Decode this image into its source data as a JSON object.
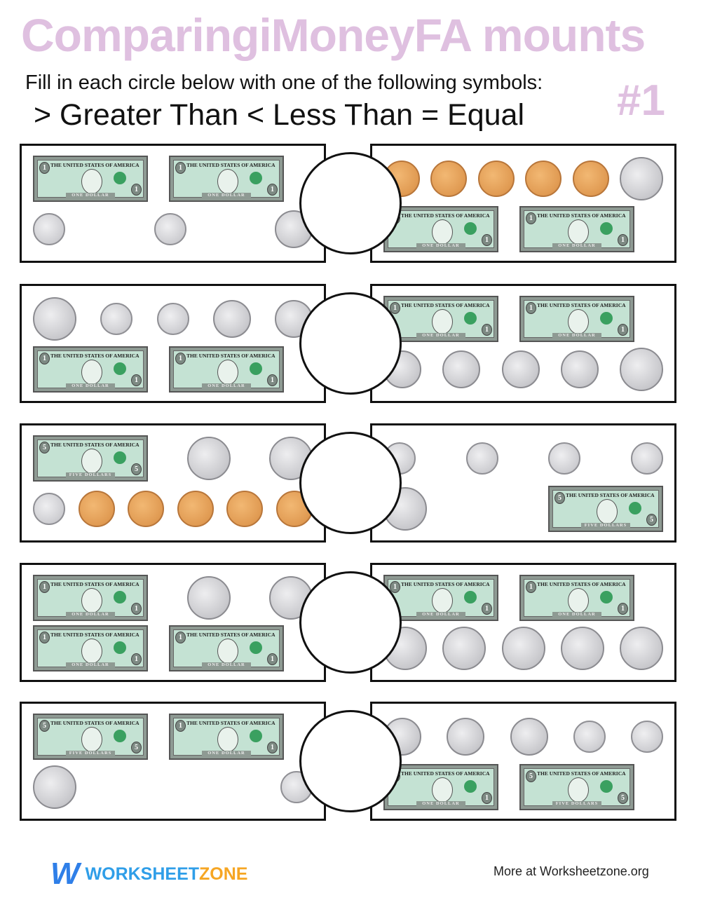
{
  "header": {
    "title": "ComparingiMoneyFA mounts",
    "instruction": "Fill in each circle below with one of the following symbols:",
    "symbols": "> Greater Than < Less Than = Equal",
    "sheet_number": "#1",
    "title_color": "#dfc0e0"
  },
  "bill_text": {
    "one_top": "THE UNITED STATES OF AMERICA",
    "one_bottom": "ONE DOLLAR",
    "five_top": "THE UNITED STATES OF AMERICA",
    "five_bottom": "FIVE DOLLARS"
  },
  "problems": [
    {
      "left": {
        "top": [
          "bill1",
          "bill1"
        ],
        "bottom": [
          "dime",
          "dime",
          "nickel"
        ]
      },
      "right": {
        "top": [
          "penny",
          "penny",
          "penny",
          "penny",
          "penny",
          "quarter"
        ],
        "bottom": [
          "bill1",
          "bill1"
        ]
      }
    },
    {
      "left": {
        "top": [
          "quarter",
          "dime",
          "dime",
          "nickel",
          "nickel"
        ],
        "bottom": [
          "bill1",
          "bill1"
        ]
      },
      "right": {
        "top": [
          "bill1",
          "bill1"
        ],
        "bottom": [
          "nickel",
          "nickel",
          "nickel",
          "nickel",
          "quarter"
        ]
      }
    },
    {
      "left": {
        "top": [
          "bill5",
          "quarter",
          "quarter"
        ],
        "bottom": [
          "dime",
          "penny",
          "penny",
          "penny",
          "penny",
          "penny"
        ]
      },
      "right": {
        "top": [
          "dime",
          "dime",
          "dime",
          "dime"
        ],
        "bottom": [
          "quarter",
          "bill5"
        ]
      }
    },
    {
      "left": {
        "top": [
          "bill1",
          "quarter",
          "quarter"
        ],
        "bottom": [
          "bill1",
          "bill1"
        ]
      },
      "right": {
        "top": [
          "bill1",
          "bill1"
        ],
        "bottom": [
          "quarter",
          "quarter",
          "quarter",
          "quarter",
          "quarter"
        ]
      }
    },
    {
      "left": {
        "top": [
          "bill5",
          "bill1"
        ],
        "bottom": [
          "quarter",
          "dime"
        ]
      },
      "right": {
        "top": [
          "nickel",
          "nickel",
          "nickel",
          "dime",
          "dime"
        ],
        "bottom": [
          "bill1",
          "bill5"
        ]
      }
    }
  ],
  "footer": {
    "logo_mark": "W",
    "logo_word_1": "WORKSHEET",
    "logo_word_2": "ZONE",
    "more": "More at Worksheetzone.org"
  }
}
